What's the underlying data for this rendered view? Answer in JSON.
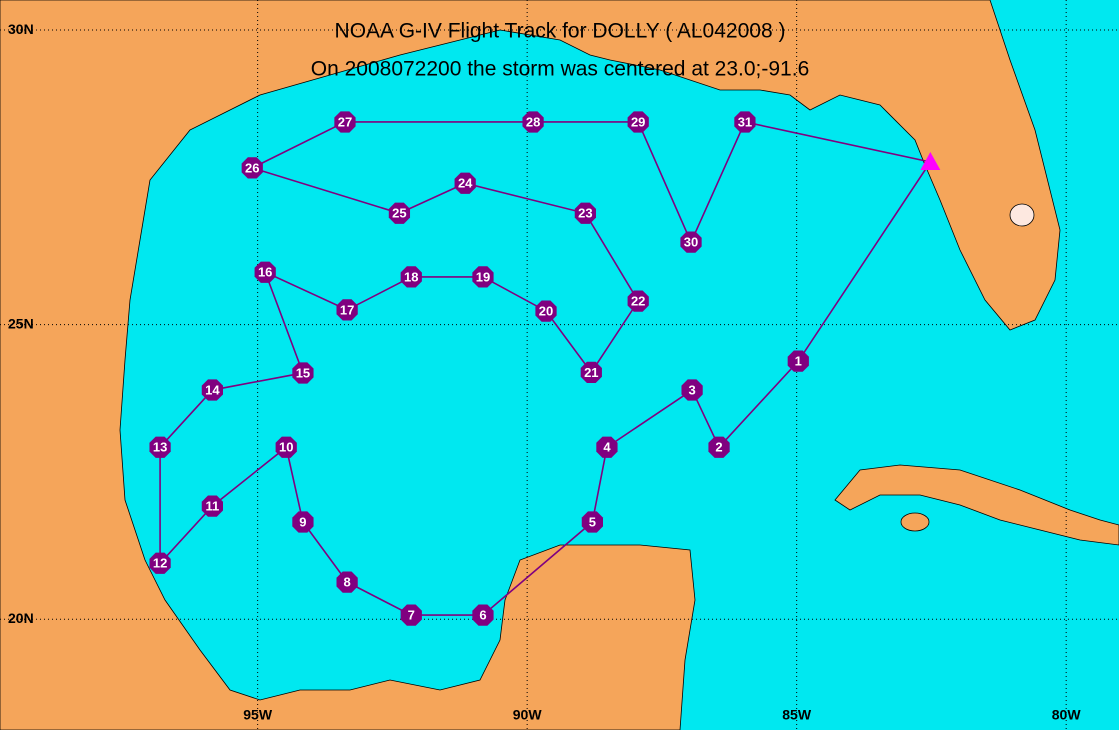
{
  "title": "NOAA G-IV Flight Track for DOLLY ( AL042008 )",
  "subtitle": "On 2008072200 the storm was centered at 23.0;-91.6",
  "lon_range": [
    -99.78,
    -79.02
  ],
  "lat_range": [
    18.12,
    30.51
  ],
  "lat_ticks": [
    {
      "value": 30,
      "label": "30N"
    },
    {
      "value": 25,
      "label": "25N"
    },
    {
      "value": 20,
      "label": "20N"
    }
  ],
  "lon_ticks": [
    {
      "value": -95,
      "label": "95W"
    },
    {
      "value": -90,
      "label": "90W"
    },
    {
      "value": -85,
      "label": "85W"
    },
    {
      "value": -80,
      "label": "80W"
    }
  ],
  "track_color": "#800080",
  "start_color": "#ff00ff",
  "start": {
    "lon": -82.52,
    "lat": 27.76
  },
  "waypoints": [
    {
      "label": "1",
      "lon": -84.97,
      "lat": 24.38
    },
    {
      "label": "2",
      "lon": -86.44,
      "lat": 22.92
    },
    {
      "label": "3",
      "lon": -86.94,
      "lat": 23.89
    },
    {
      "label": "4",
      "lon": -88.52,
      "lat": 22.92
    },
    {
      "label": "5",
      "lon": -88.79,
      "lat": 21.65
    },
    {
      "label": "6",
      "lon": -90.82,
      "lat": 20.07
    },
    {
      "label": "7",
      "lon": -92.15,
      "lat": 20.07
    },
    {
      "label": "8",
      "lon": -93.34,
      "lat": 20.63
    },
    {
      "label": "9",
      "lon": -94.16,
      "lat": 21.65
    },
    {
      "label": "10",
      "lon": -94.47,
      "lat": 22.92
    },
    {
      "label": "11",
      "lon": -95.84,
      "lat": 21.92
    },
    {
      "label": "12",
      "lon": -96.81,
      "lat": 20.95
    },
    {
      "label": "13",
      "lon": -96.81,
      "lat": 22.92
    },
    {
      "label": "14",
      "lon": -95.84,
      "lat": 23.89
    },
    {
      "label": "15",
      "lon": -94.16,
      "lat": 24.18
    },
    {
      "label": "16",
      "lon": -94.86,
      "lat": 25.89
    },
    {
      "label": "17",
      "lon": -93.34,
      "lat": 25.25
    },
    {
      "label": "18",
      "lon": -92.15,
      "lat": 25.81
    },
    {
      "label": "19",
      "lon": -90.82,
      "lat": 25.81
    },
    {
      "label": "20",
      "lon": -89.65,
      "lat": 25.23
    },
    {
      "label": "21",
      "lon": -88.81,
      "lat": 24.19
    },
    {
      "label": "22",
      "lon": -87.94,
      "lat": 25.4
    },
    {
      "label": "23",
      "lon": -88.92,
      "lat": 26.89
    },
    {
      "label": "24",
      "lon": -91.15,
      "lat": 27.4
    },
    {
      "label": "25",
      "lon": -92.37,
      "lat": 26.89
    },
    {
      "label": "26",
      "lon": -95.1,
      "lat": 27.66
    },
    {
      "label": "27",
      "lon": -93.38,
      "lat": 28.44
    },
    {
      "label": "28",
      "lon": -89.89,
      "lat": 28.44
    },
    {
      "label": "29",
      "lon": -87.94,
      "lat": 28.44
    },
    {
      "label": "30",
      "lon": -86.96,
      "lat": 26.4
    },
    {
      "label": "31",
      "lon": -85.96,
      "lat": 28.44
    }
  ]
}
